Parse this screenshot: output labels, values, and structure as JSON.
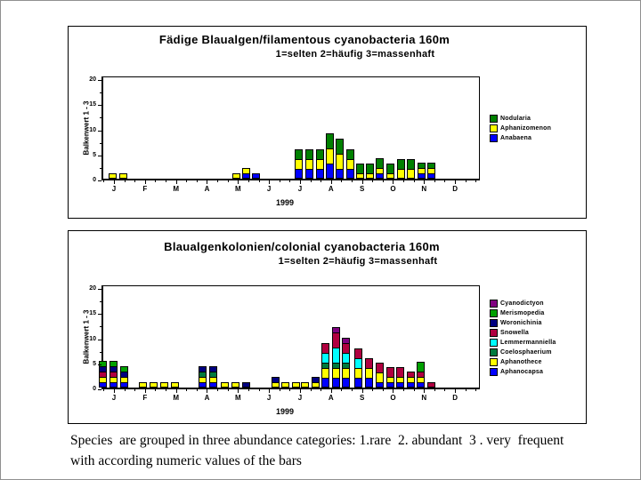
{
  "caption": {
    "line1": "Species  are grouped in three abundance categories: 1.rare  2. abundant  3 . very  frequent",
    "line2": "with according numeric values of the bars"
  },
  "chart_data": [
    {
      "type": "bar",
      "stacked": true,
      "title": "Fädige Blaualgen/filamentous cyanobacteria 160m",
      "subtitle": "1=selten 2=häufig 3=massenhaft",
      "ylabel": "Balkenwert 1 - 3",
      "xlabel": "1999",
      "ylim": [
        0,
        20
      ],
      "yticks": [
        0,
        5,
        10,
        15,
        20
      ],
      "months": [
        "J",
        "F",
        "M",
        "A",
        "M",
        "J",
        "J",
        "A",
        "S",
        "O",
        "N",
        "D"
      ],
      "grid": false,
      "legend_position": "right",
      "legend": [
        {
          "name": "Nodularia",
          "color": "#008000"
        },
        {
          "name": "Aphanizomenon",
          "color": "#FFFF00"
        },
        {
          "name": "Anabaena",
          "color": "#0000FF"
        }
      ],
      "stack_order": [
        "Anabaena",
        "Aphanizomenon",
        "Nodularia"
      ],
      "bars": [
        {
          "x": 12,
          "values": {
            "Aphanizomenon": 1
          }
        },
        {
          "x": 24,
          "values": {
            "Aphanizomenon": 1
          }
        },
        {
          "x": 151,
          "values": {
            "Aphanizomenon": 1
          }
        },
        {
          "x": 162,
          "values": {
            "Anabaena": 1,
            "Aphanizomenon": 1
          }
        },
        {
          "x": 173,
          "values": {
            "Anabaena": 1
          }
        },
        {
          "x": 221,
          "values": {
            "Anabaena": 2,
            "Aphanizomenon": 2,
            "Nodularia": 2
          }
        },
        {
          "x": 233,
          "values": {
            "Anabaena": 2,
            "Aphanizomenon": 2,
            "Nodularia": 2
          }
        },
        {
          "x": 245,
          "values": {
            "Anabaena": 2,
            "Aphanizomenon": 2,
            "Nodularia": 2
          }
        },
        {
          "x": 256,
          "values": {
            "Anabaena": 3,
            "Aphanizomenon": 3,
            "Nodularia": 3
          }
        },
        {
          "x": 267,
          "values": {
            "Anabaena": 2,
            "Aphanizomenon": 3,
            "Nodularia": 3
          }
        },
        {
          "x": 279,
          "values": {
            "Anabaena": 2,
            "Aphanizomenon": 2,
            "Nodularia": 2
          }
        },
        {
          "x": 290,
          "values": {
            "Aphanizomenon": 1,
            "Nodularia": 2
          }
        },
        {
          "x": 301,
          "values": {
            "Aphanizomenon": 1,
            "Nodularia": 2
          }
        },
        {
          "x": 312,
          "values": {
            "Anabaena": 1,
            "Aphanizomenon": 1,
            "Nodularia": 2
          }
        },
        {
          "x": 324,
          "values": {
            "Aphanizomenon": 1,
            "Nodularia": 2
          }
        },
        {
          "x": 336,
          "values": {
            "Aphanizomenon": 2,
            "Nodularia": 2
          }
        },
        {
          "x": 347,
          "values": {
            "Aphanizomenon": 2,
            "Nodularia": 2
          }
        },
        {
          "x": 359,
          "values": {
            "Anabaena": 1,
            "Aphanizomenon": 1,
            "Nodularia": 1
          }
        },
        {
          "x": 370,
          "values": {
            "Anabaena": 1,
            "Aphanizomenon": 1,
            "Nodularia": 1
          }
        }
      ]
    },
    {
      "type": "bar",
      "stacked": true,
      "title": "Blaualgenkolonien/colonial cyanobacteria 160m",
      "subtitle": "1=selten 2=häufig 3=massenhaft",
      "ylabel": "Balkenwert 1 - 3",
      "xlabel": "1999",
      "ylim": [
        0,
        20
      ],
      "yticks": [
        0,
        5,
        10,
        15,
        20
      ],
      "months": [
        "J",
        "F",
        "M",
        "A",
        "M",
        "J",
        "J",
        "A",
        "S",
        "O",
        "N",
        "D"
      ],
      "grid": false,
      "legend_position": "right",
      "legend": [
        {
          "name": "Cyanodictyon",
          "color": "#800080"
        },
        {
          "name": "Merismopedia",
          "color": "#00A000"
        },
        {
          "name": "Woronichinia",
          "color": "#000080"
        },
        {
          "name": "Snowella",
          "color": "#B00040"
        },
        {
          "name": "Lemmermanniella",
          "color": "#00FFFF"
        },
        {
          "name": "Coelosphaerium",
          "color": "#007A3D"
        },
        {
          "name": "Aphanothece",
          "color": "#FFFF00"
        },
        {
          "name": "Aphanocapsa",
          "color": "#0000FF"
        }
      ],
      "stack_order": [
        "Aphanocapsa",
        "Aphanothece",
        "Coelosphaerium",
        "Lemmermanniella",
        "Snowella",
        "Woronichinia",
        "Merismopedia",
        "Cyanodictyon"
      ],
      "bars": [
        {
          "x": 1,
          "values": {
            "Aphanocapsa": 1,
            "Aphanothece": 1,
            "Snowella": 1,
            "Woronichinia": 1,
            "Merismopedia": 1
          }
        },
        {
          "x": 13,
          "values": {
            "Aphanocapsa": 1,
            "Aphanothece": 1,
            "Snowella": 1,
            "Woronichinia": 1,
            "Merismopedia": 1
          }
        },
        {
          "x": 25,
          "values": {
            "Aphanocapsa": 1,
            "Aphanothece": 1,
            "Woronichinia": 1,
            "Merismopedia": 1
          }
        },
        {
          "x": 46,
          "values": {
            "Aphanothece": 1
          }
        },
        {
          "x": 58,
          "values": {
            "Aphanothece": 1
          }
        },
        {
          "x": 70,
          "values": {
            "Aphanothece": 1
          }
        },
        {
          "x": 82,
          "values": {
            "Aphanothece": 1
          }
        },
        {
          "x": 113,
          "values": {
            "Aphanocapsa": 1,
            "Aphanothece": 1,
            "Coelosphaerium": 1,
            "Woronichinia": 1
          }
        },
        {
          "x": 125,
          "values": {
            "Aphanocapsa": 1,
            "Aphanothece": 1,
            "Coelosphaerium": 1,
            "Woronichinia": 1
          }
        },
        {
          "x": 138,
          "values": {
            "Aphanothece": 1
          }
        },
        {
          "x": 150,
          "values": {
            "Aphanothece": 1
          }
        },
        {
          "x": 162,
          "values": {
            "Woronichinia": 1
          }
        },
        {
          "x": 195,
          "values": {
            "Aphanothece": 1,
            "Woronichinia": 1
          }
        },
        {
          "x": 206,
          "values": {
            "Aphanothece": 1
          }
        },
        {
          "x": 218,
          "values": {
            "Aphanothece": 1
          }
        },
        {
          "x": 228,
          "values": {
            "Aphanothece": 1
          }
        },
        {
          "x": 240,
          "values": {
            "Aphanothece": 1,
            "Woronichinia": 1
          }
        },
        {
          "x": 251,
          "values": {
            "Aphanocapsa": 2,
            "Aphanothece": 2,
            "Coelosphaerium": 1,
            "Lemmermanniella": 2,
            "Snowella": 2
          }
        },
        {
          "x": 263,
          "values": {
            "Aphanocapsa": 2,
            "Aphanothece": 2,
            "Coelosphaerium": 1,
            "Lemmermanniella": 3,
            "Snowella": 3,
            "Cyanodictyon": 1
          }
        },
        {
          "x": 274,
          "values": {
            "Aphanocapsa": 2,
            "Aphanothece": 2,
            "Coelosphaerium": 1,
            "Lemmermanniella": 2,
            "Snowella": 2,
            "Cyanodictyon": 1
          }
        },
        {
          "x": 288,
          "values": {
            "Aphanocapsa": 2,
            "Aphanothece": 2,
            "Lemmermanniella": 2,
            "Snowella": 2
          }
        },
        {
          "x": 300,
          "values": {
            "Aphanocapsa": 2,
            "Aphanothece": 2,
            "Snowella": 2
          }
        },
        {
          "x": 312,
          "values": {
            "Aphanocapsa": 1,
            "Aphanothece": 2,
            "Snowella": 2
          }
        },
        {
          "x": 324,
          "values": {
            "Aphanocapsa": 1,
            "Aphanothece": 1,
            "Snowella": 2
          }
        },
        {
          "x": 335,
          "values": {
            "Aphanocapsa": 1,
            "Aphanothece": 1,
            "Snowella": 2
          }
        },
        {
          "x": 347,
          "values": {
            "Aphanocapsa": 1,
            "Aphanothece": 1,
            "Snowella": 1
          }
        },
        {
          "x": 358,
          "values": {
            "Aphanocapsa": 1,
            "Aphanothece": 1,
            "Snowella": 1,
            "Merismopedia": 2
          }
        },
        {
          "x": 370,
          "values": {
            "Snowella": 1
          }
        }
      ]
    }
  ]
}
